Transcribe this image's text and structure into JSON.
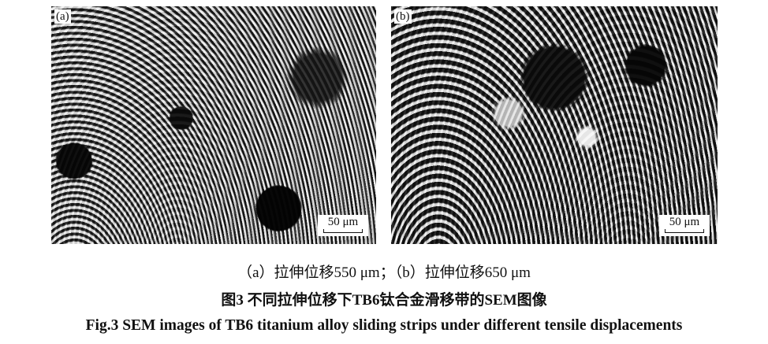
{
  "figure": {
    "panels": [
      {
        "label": "(a)",
        "scale_bar": "50 μm"
      },
      {
        "label": "(b)",
        "scale_bar": "50 μm"
      }
    ],
    "subcaption": "（a）拉伸位移550 μm；（b）拉伸位移650 μm",
    "caption_zh": "图3  不同拉伸位移下TB6钛合金滑移带的SEM图像",
    "caption_en": "Fig.3  SEM images of TB6 titanium alloy sliding strips under different tensile displacements"
  }
}
